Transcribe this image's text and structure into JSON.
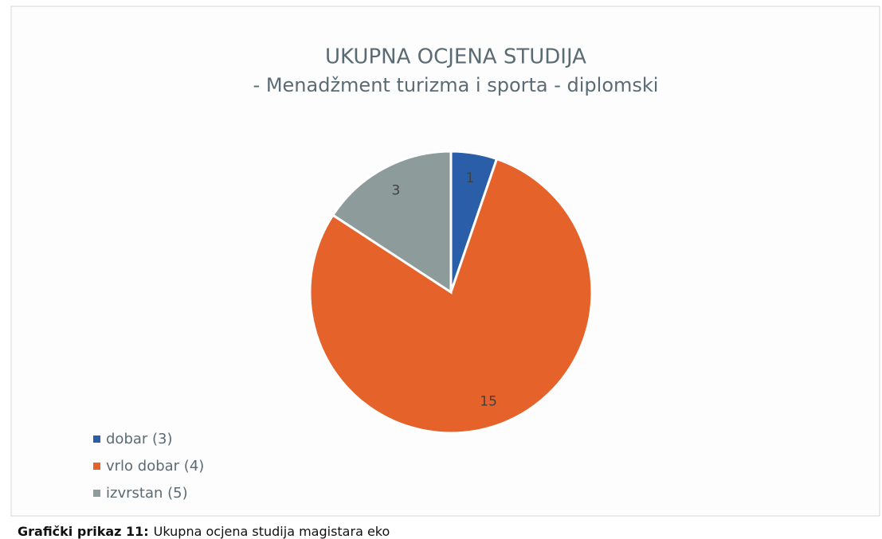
{
  "chart_data": {
    "type": "pie",
    "title": "UKUPNA OCJENA STUDIJA",
    "subtitle": "- Menadžment turizma i sporta - diplomski",
    "categories": [
      "dobar (3)",
      "vrlo dobar (4)",
      "izvrstan (5)"
    ],
    "values": [
      1,
      15,
      3
    ],
    "colors": [
      "#2a5ea8",
      "#e5622a",
      "#8d9c9b"
    ],
    "legend": "bottom-left",
    "caption": {
      "label": "Grafički prikaz 11:",
      "text": "Ukupna ocjena studija magistara eko"
    }
  }
}
